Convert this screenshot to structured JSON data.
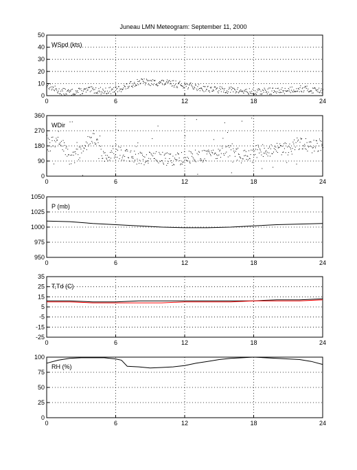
{
  "title": "Juneau LMN Meteogram: September 11, 2000",
  "colors": {
    "axes": "#000000",
    "temperature": "#000000",
    "dewpoint": "#ff0000",
    "background": "#ffffff"
  },
  "chart_data": [
    {
      "id": "wspd",
      "type": "scatter",
      "label": "WSpd (kts)",
      "xlim": [
        0,
        24
      ],
      "ylim": [
        0,
        50
      ],
      "grid": true,
      "xticks": [
        "0",
        "6",
        "12",
        "18",
        "24"
      ],
      "yticks": [
        0,
        10,
        20,
        30,
        40,
        50
      ],
      "series": [
        {
          "color": "#000000",
          "x": [
            0,
            1,
            2,
            3,
            4,
            5,
            6,
            7,
            8,
            9,
            10,
            11,
            12,
            13,
            14,
            15,
            16,
            17,
            18,
            19,
            20,
            21,
            22,
            23,
            24
          ],
          "y": [
            9,
            4,
            3,
            4,
            5,
            4,
            5,
            8,
            12,
            11,
            11,
            10,
            9,
            7,
            6,
            5,
            5,
            4,
            3,
            4,
            4,
            5,
            6,
            5,
            5
          ]
        }
      ]
    },
    {
      "id": "wdir",
      "type": "scatter",
      "label": "WDir",
      "xlim": [
        0,
        24
      ],
      "ylim": [
        0,
        360
      ],
      "grid": true,
      "xticks": [
        "0",
        "6",
        "12",
        "18",
        "24"
      ],
      "yticks": [
        0,
        90,
        180,
        270,
        360
      ],
      "series": [
        {
          "color": "#000000",
          "x": [
            0,
            1,
            2,
            3,
            4,
            5,
            6,
            7,
            8,
            9,
            10,
            11,
            12,
            13,
            14,
            15,
            16,
            17,
            18,
            19,
            20,
            21,
            22,
            23,
            24
          ],
          "y": [
            170,
            230,
            100,
            150,
            240,
            120,
            150,
            120,
            110,
            120,
            110,
            100,
            110,
            120,
            130,
            140,
            160,
            110,
            150,
            150,
            160,
            160,
            200,
            180,
            185
          ]
        }
      ]
    },
    {
      "id": "pres",
      "type": "line",
      "label": "P (mb)",
      "xlim": [
        0,
        24
      ],
      "ylim": [
        950,
        1050
      ],
      "grid": true,
      "xticks": [
        "0",
        "6",
        "12",
        "18",
        "24"
      ],
      "yticks": [
        950,
        975,
        1000,
        1025,
        1050
      ],
      "series": [
        {
          "color": "#000000",
          "x": [
            0,
            2,
            4,
            6,
            8,
            10,
            12,
            14,
            16,
            18,
            20,
            22,
            24
          ],
          "y": [
            1010,
            1009,
            1006,
            1004,
            1002,
            1000,
            999,
            999,
            1000,
            1002,
            1004,
            1005,
            1006
          ]
        }
      ]
    },
    {
      "id": "temp",
      "type": "line",
      "label": "T,Td (C)",
      "xlim": [
        0,
        24
      ],
      "ylim": [
        -25,
        35
      ],
      "grid": true,
      "xticks": [
        "0",
        "6",
        "12",
        "18",
        "24"
      ],
      "yticks": [
        -25,
        -15,
        -5,
        5,
        15,
        25,
        35
      ],
      "series": [
        {
          "color": "#000000",
          "x": [
            0,
            2,
            4,
            6,
            8,
            10,
            12,
            14,
            16,
            18,
            20,
            22,
            24
          ],
          "y": [
            11,
            11,
            10,
            10,
            11,
            11,
            11,
            11,
            11,
            11,
            12,
            12,
            13
          ]
        },
        {
          "color": "#ff0000",
          "x": [
            0,
            2,
            4,
            6,
            8,
            10,
            12,
            14,
            16,
            18,
            20,
            22,
            24
          ],
          "y": [
            10,
            10,
            9,
            9,
            9,
            9,
            10,
            10,
            10,
            11,
            11,
            11,
            12
          ]
        }
      ]
    },
    {
      "id": "rh",
      "type": "line",
      "label": "RH (%)",
      "xlim": [
        0,
        24
      ],
      "ylim": [
        0,
        100
      ],
      "grid": true,
      "xticks": [
        "0",
        "6",
        "12",
        "18",
        "24"
      ],
      "yticks": [
        0,
        25,
        50,
        75,
        100
      ],
      "series": [
        {
          "color": "#000000",
          "x": [
            0,
            1,
            2,
            3,
            4,
            5,
            6,
            6.5,
            7,
            8,
            9,
            10,
            11,
            12,
            13,
            14,
            15,
            16,
            17,
            18,
            19,
            20,
            21,
            22,
            23,
            24
          ],
          "y": [
            90,
            95,
            98,
            99,
            99,
            99,
            97,
            95,
            85,
            84,
            82,
            83,
            84,
            86,
            90,
            93,
            96,
            98,
            99,
            100,
            99,
            98,
            97,
            96,
            93,
            88
          ]
        }
      ]
    }
  ]
}
